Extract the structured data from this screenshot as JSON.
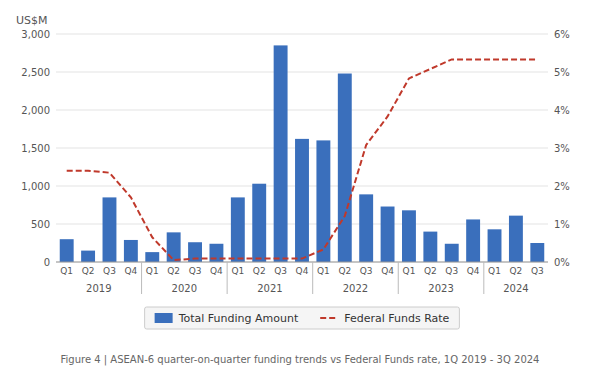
{
  "chart_data": {
    "type": "bar",
    "caption": "Figure 4 | ASEAN-6 quarter-on-quarter funding trends vs Federal Funds rate, 1Q 2019 - 3Q 2024",
    "ylabel": "US$M",
    "categories": [
      "Q1",
      "Q2",
      "Q3",
      "Q4",
      "Q1",
      "Q2",
      "Q3",
      "Q4",
      "Q1",
      "Q2",
      "Q3",
      "Q4",
      "Q1",
      "Q2",
      "Q3",
      "Q4",
      "Q1",
      "Q2",
      "Q3",
      "Q4",
      "Q1",
      "Q2",
      "Q3"
    ],
    "x_groups": [
      {
        "label": "2019",
        "count": 4
      },
      {
        "label": "2020",
        "count": 4
      },
      {
        "label": "2021",
        "count": 4
      },
      {
        "label": "2022",
        "count": 4
      },
      {
        "label": "2023",
        "count": 4
      },
      {
        "label": "2024",
        "count": 3
      }
    ],
    "series": [
      {
        "name": "Total Funding Amount",
        "type": "bar",
        "color": "#3a6fbc",
        "values": [
          300,
          150,
          850,
          290,
          130,
          390,
          260,
          240,
          850,
          1030,
          2850,
          1620,
          1600,
          2480,
          890,
          730,
          680,
          400,
          240,
          560,
          430,
          610,
          250
        ]
      },
      {
        "name": "Federal Funds Rate",
        "type": "line",
        "axis": "y2",
        "color": "#c0392b",
        "line_style": "dashed",
        "values": [
          2.4,
          2.4,
          2.35,
          1.7,
          0.65,
          0.05,
          0.09,
          0.09,
          0.09,
          0.09,
          0.09,
          0.09,
          0.33,
          1.21,
          3.08,
          3.83,
          4.83,
          5.08,
          5.33,
          5.33,
          5.33,
          5.33,
          5.33
        ]
      }
    ],
    "ylim": [
      0,
      3000
    ],
    "yticks": [
      0,
      500,
      {
        "value": 1000,
        "label": "1,000"
      },
      {
        "value": 1500,
        "label": "1,500"
      },
      {
        "value": 2000,
        "label": "2,000"
      },
      {
        "value": 2500,
        "label": "2,500"
      },
      {
        "value": 3000,
        "label": "3,000"
      }
    ],
    "y2lim": [
      0,
      6
    ],
    "y2ticks": [
      {
        "value": 0,
        "label": "0%"
      },
      {
        "value": 1,
        "label": "1%"
      },
      {
        "value": 2,
        "label": "2%"
      },
      {
        "value": 3,
        "label": "3%"
      },
      {
        "value": 4,
        "label": "4%"
      },
      {
        "value": 5,
        "label": "5%"
      },
      {
        "value": 6,
        "label": "6%"
      }
    ],
    "grid": true,
    "legend": "bottom"
  }
}
